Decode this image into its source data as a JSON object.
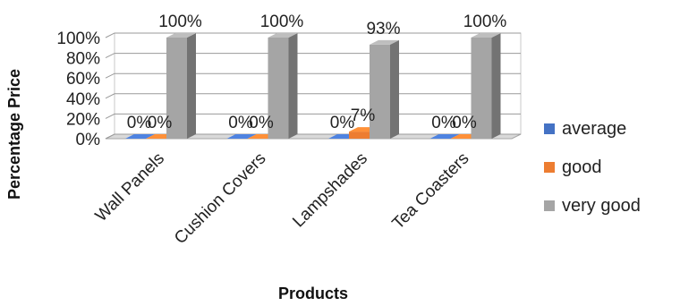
{
  "chart_data": {
    "type": "bar",
    "style": "3d-clustered-column",
    "categories": [
      "Wall Panels",
      "Cushion Covers",
      "Lampshades",
      "Tea Coasters"
    ],
    "series": [
      {
        "name": "average",
        "values": [
          0,
          0,
          0,
          0
        ],
        "labels": [
          "0%",
          "0%",
          "0%",
          "0%"
        ],
        "color": "#4472C4"
      },
      {
        "name": "good",
        "values": [
          0,
          0,
          7,
          0
        ],
        "labels": [
          "0%",
          "0%",
          "7%",
          "0%"
        ],
        "color": "#ED7D31"
      },
      {
        "name": "very good",
        "values": [
          100,
          100,
          93,
          100
        ],
        "labels": [
          "100%",
          "100%",
          "93%",
          "100%"
        ],
        "color": "#A5A5A5"
      }
    ],
    "ylim": [
      0,
      100
    ],
    "y_ticks": [
      0,
      20,
      40,
      60,
      80,
      100
    ],
    "y_tick_labels": [
      "0%",
      "20%",
      "40%",
      "60%",
      "80%",
      "100%"
    ],
    "ylabel": "Percentage Price",
    "xlabel": "Products",
    "grid": true,
    "legend_position": "right"
  }
}
